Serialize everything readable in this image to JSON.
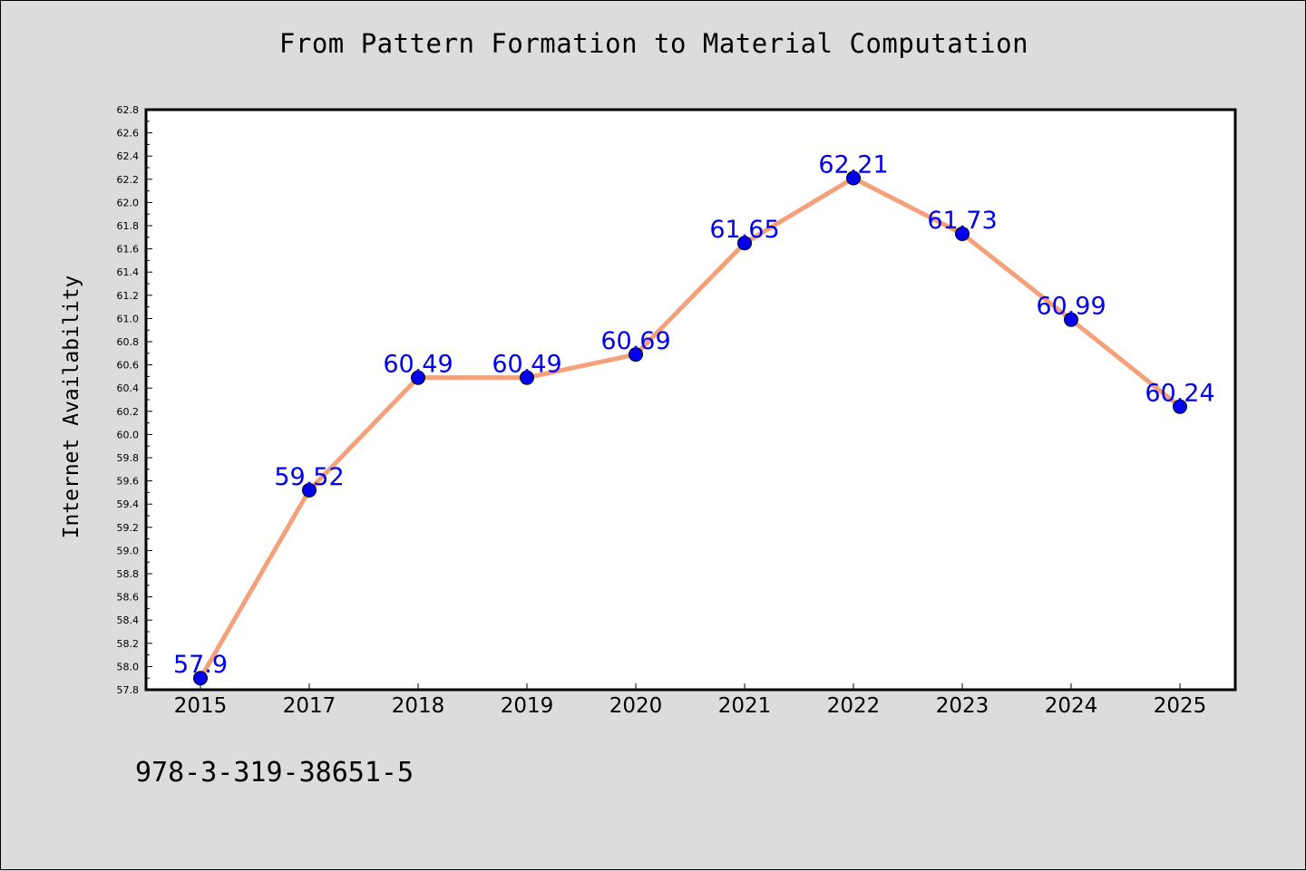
{
  "chart_data": {
    "type": "line",
    "title": "From Pattern Formation to Material Computation",
    "xlabel": "",
    "ylabel": "Internet Availability",
    "categories": [
      "2015",
      "2017",
      "2018",
      "2019",
      "2020",
      "2021",
      "2022",
      "2023",
      "2024",
      "2025"
    ],
    "series": [
      {
        "values": [
          57.9,
          59.52,
          60.49,
          60.49,
          60.69,
          61.65,
          62.21,
          61.73,
          60.99,
          60.24
        ],
        "data_labels": [
          "57.9",
          "59.52",
          "60.49",
          "60.49",
          "60.69",
          "61.65",
          "62.21",
          "61.73",
          "60.99",
          "60.24"
        ],
        "line_color": "#f4a07a",
        "marker_color": "#0000ee",
        "label_color": "#0000ee"
      }
    ],
    "ylim": [
      57.8,
      62.8
    ],
    "yticks": [
      "57.8",
      "58.0",
      "58.2",
      "58.4",
      "58.6",
      "58.8",
      "59.0",
      "59.2",
      "59.4",
      "59.6",
      "59.8",
      "60.0",
      "60.2",
      "60.4",
      "60.6",
      "60.8",
      "61.0",
      "61.2",
      "61.4",
      "61.6",
      "61.8",
      "62.0",
      "62.2",
      "62.4",
      "62.6",
      "62.8"
    ],
    "grid": false,
    "legend": "none"
  },
  "footer": {
    "isbn": "978-3-319-38651-5"
  },
  "colors": {
    "background": "#dcdcdc",
    "plot_background": "#ffffff"
  }
}
